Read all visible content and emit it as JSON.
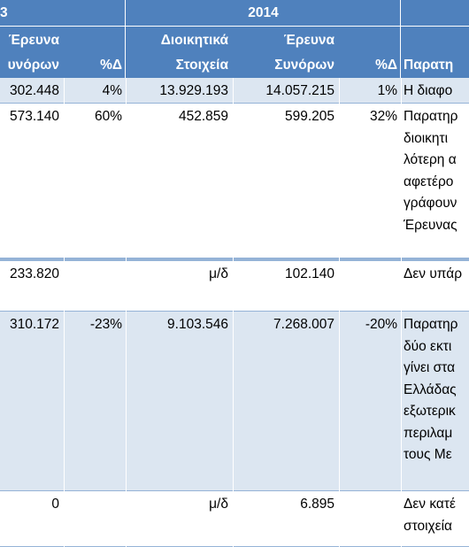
{
  "header": {
    "year_left": "3",
    "year_right": "2014",
    "columns": [
      [
        "Έρευνα",
        "υνόρων"
      ],
      [
        "%Δ"
      ],
      [
        "Διοικητικά",
        "Στοιχεία"
      ],
      [
        "Έρευνα",
        "Συνόρων"
      ],
      [
        "%Δ"
      ],
      [
        "Παρατη"
      ]
    ]
  },
  "rows": [
    {
      "cells": [
        "302.448",
        "4%",
        "13.929.193",
        "14.057.215",
        "1%"
      ],
      "note": [
        "Η διαφο"
      ]
    },
    {
      "cells": [
        "573.140",
        "60%",
        "452.859",
        "599.205",
        "32%"
      ],
      "note": [
        "Παρατηρ",
        "διοικητι",
        "λότερη α",
        "αφετέρο",
        "γράφουν",
        "Έρευνας"
      ]
    },
    {
      "cells": [
        "233.820",
        "",
        "μ/δ",
        "102.140",
        ""
      ],
      "note": [
        "Δεν υπάρ"
      ]
    },
    {
      "cells": [
        "310.172",
        "-23%",
        "9.103.546",
        "7.268.007",
        "-20%"
      ],
      "note": [
        "Παρατηρ",
        "δύο εκτι",
        "γίνει στα",
        "Ελλάδας",
        "εξωτερικ",
        "περιλαμ",
        "τους Με"
      ]
    },
    {
      "cells": [
        "0",
        "",
        "μ/δ",
        "6.895",
        ""
      ],
      "note": [
        "Δεν κατέ",
        "στοιχεία"
      ]
    }
  ]
}
